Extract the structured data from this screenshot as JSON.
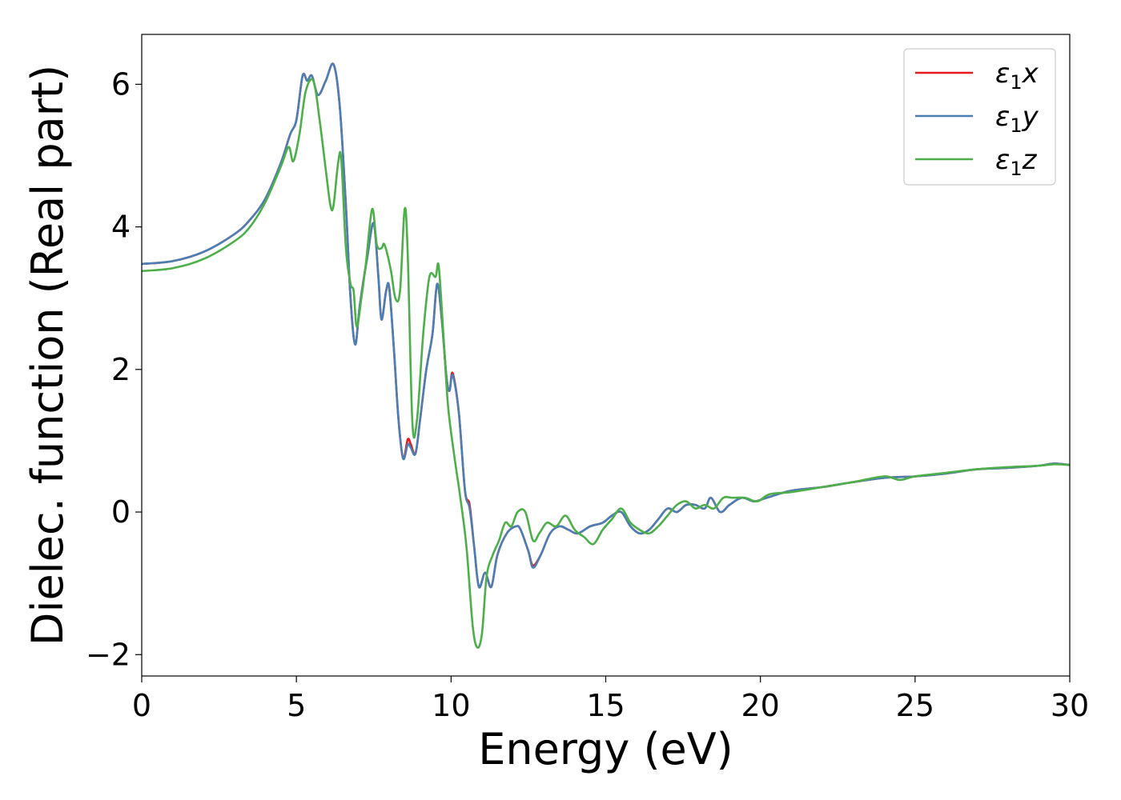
{
  "chart_data": {
    "type": "line",
    "title": "",
    "xlabel": "Energy (eV)",
    "ylabel": "Dielec. function (Real part)",
    "xlim": [
      0,
      30
    ],
    "ylim": [
      -2.3,
      6.7
    ],
    "xticks": [
      0,
      5,
      10,
      15,
      20,
      25,
      30
    ],
    "xtick_labels": [
      "0",
      "5",
      "10",
      "15",
      "20",
      "25",
      "30"
    ],
    "yticks": [
      -2,
      0,
      2,
      4,
      6
    ],
    "ytick_labels": [
      "−2",
      "0",
      "2",
      "4",
      "6"
    ],
    "grid": false,
    "legend_position": "top-right",
    "series": [
      {
        "name": "ε₁x",
        "legend_base": "ε",
        "legend_sub": "1",
        "legend_var": "x",
        "color": "#e41a1c",
        "points": [
          [
            0,
            3.48
          ],
          [
            1,
            3.52
          ],
          [
            2,
            3.65
          ],
          [
            3,
            3.9
          ],
          [
            3.5,
            4.1
          ],
          [
            4,
            4.4
          ],
          [
            4.5,
            4.9
          ],
          [
            4.8,
            5.3
          ],
          [
            5,
            5.5
          ],
          [
            5.2,
            6.12
          ],
          [
            5.35,
            6.05
          ],
          [
            5.5,
            6.12
          ],
          [
            5.7,
            5.85
          ],
          [
            5.95,
            6.05
          ],
          [
            6.2,
            6.28
          ],
          [
            6.4,
            5.7
          ],
          [
            6.6,
            4.3
          ],
          [
            6.75,
            3.0
          ],
          [
            6.9,
            2.35
          ],
          [
            7.05,
            2.9
          ],
          [
            7.3,
            3.6
          ],
          [
            7.5,
            4.05
          ],
          [
            7.65,
            3.3
          ],
          [
            7.75,
            2.7
          ],
          [
            7.9,
            3.1
          ],
          [
            8.0,
            3.15
          ],
          [
            8.15,
            2.3
          ],
          [
            8.3,
            1.3
          ],
          [
            8.45,
            0.75
          ],
          [
            8.6,
            1.02
          ],
          [
            8.7,
            0.95
          ],
          [
            8.85,
            0.82
          ],
          [
            9.0,
            1.3
          ],
          [
            9.2,
            2.0
          ],
          [
            9.4,
            2.5
          ],
          [
            9.55,
            3.2
          ],
          [
            9.7,
            2.7
          ],
          [
            9.85,
            1.9
          ],
          [
            9.95,
            1.7
          ],
          [
            10.05,
            1.95
          ],
          [
            10.25,
            1.4
          ],
          [
            10.45,
            0.3
          ],
          [
            10.6,
            0.1
          ],
          [
            10.75,
            -0.5
          ],
          [
            10.9,
            -1.05
          ],
          [
            11.1,
            -0.85
          ],
          [
            11.3,
            -1.05
          ],
          [
            11.5,
            -0.6
          ],
          [
            11.8,
            -0.3
          ],
          [
            12.1,
            -0.2
          ],
          [
            12.25,
            -0.25
          ],
          [
            12.5,
            -0.55
          ],
          [
            12.65,
            -0.75
          ],
          [
            12.9,
            -0.6
          ],
          [
            13.2,
            -0.3
          ],
          [
            13.5,
            -0.2
          ],
          [
            13.8,
            -0.25
          ],
          [
            14.1,
            -0.3
          ],
          [
            14.5,
            -0.2
          ],
          [
            14.9,
            -0.15
          ],
          [
            15.2,
            -0.05
          ],
          [
            15.5,
            0.0
          ],
          [
            15.8,
            -0.2
          ],
          [
            16.1,
            -0.3
          ],
          [
            16.4,
            -0.25
          ],
          [
            16.7,
            -0.1
          ],
          [
            17.0,
            0.05
          ],
          [
            17.3,
            0.0
          ],
          [
            17.6,
            0.1
          ],
          [
            17.9,
            0.1
          ],
          [
            18.2,
            0.05
          ],
          [
            18.4,
            0.2
          ],
          [
            18.7,
            0.0
          ],
          [
            19.0,
            0.1
          ],
          [
            19.4,
            0.2
          ],
          [
            19.8,
            0.15
          ],
          [
            20.2,
            0.2
          ],
          [
            21.0,
            0.3
          ],
          [
            22.0,
            0.35
          ],
          [
            23.0,
            0.42
          ],
          [
            24.0,
            0.48
          ],
          [
            25.0,
            0.5
          ],
          [
            26.0,
            0.54
          ],
          [
            27.0,
            0.6
          ],
          [
            28.0,
            0.62
          ],
          [
            29.0,
            0.65
          ],
          [
            29.5,
            0.68
          ],
          [
            30,
            0.66
          ]
        ]
      },
      {
        "name": "ε₁y",
        "legend_base": "ε",
        "legend_sub": "1",
        "legend_var": "y",
        "color": "#4a7fb5",
        "points": [
          [
            0,
            3.48
          ],
          [
            1,
            3.52
          ],
          [
            2,
            3.65
          ],
          [
            3,
            3.9
          ],
          [
            3.5,
            4.1
          ],
          [
            4,
            4.4
          ],
          [
            4.5,
            4.9
          ],
          [
            4.8,
            5.3
          ],
          [
            5,
            5.5
          ],
          [
            5.2,
            6.12
          ],
          [
            5.35,
            6.05
          ],
          [
            5.5,
            6.12
          ],
          [
            5.7,
            5.85
          ],
          [
            5.95,
            6.05
          ],
          [
            6.2,
            6.28
          ],
          [
            6.4,
            5.7
          ],
          [
            6.6,
            4.3
          ],
          [
            6.75,
            3.0
          ],
          [
            6.9,
            2.35
          ],
          [
            7.05,
            2.9
          ],
          [
            7.3,
            3.6
          ],
          [
            7.5,
            4.05
          ],
          [
            7.65,
            3.3
          ],
          [
            7.75,
            2.7
          ],
          [
            7.9,
            3.1
          ],
          [
            8.0,
            3.15
          ],
          [
            8.15,
            2.3
          ],
          [
            8.3,
            1.3
          ],
          [
            8.45,
            0.75
          ],
          [
            8.6,
            0.95
          ],
          [
            8.7,
            0.9
          ],
          [
            8.85,
            0.82
          ],
          [
            9.0,
            1.3
          ],
          [
            9.2,
            2.0
          ],
          [
            9.4,
            2.5
          ],
          [
            9.55,
            3.2
          ],
          [
            9.7,
            2.7
          ],
          [
            9.85,
            1.9
          ],
          [
            9.95,
            1.7
          ],
          [
            10.05,
            1.92
          ],
          [
            10.25,
            1.4
          ],
          [
            10.45,
            0.3
          ],
          [
            10.6,
            0.05
          ],
          [
            10.75,
            -0.5
          ],
          [
            10.9,
            -1.05
          ],
          [
            11.1,
            -0.85
          ],
          [
            11.3,
            -1.05
          ],
          [
            11.5,
            -0.6
          ],
          [
            11.8,
            -0.3
          ],
          [
            12.1,
            -0.2
          ],
          [
            12.25,
            -0.25
          ],
          [
            12.5,
            -0.55
          ],
          [
            12.65,
            -0.78
          ],
          [
            12.9,
            -0.6
          ],
          [
            13.2,
            -0.3
          ],
          [
            13.5,
            -0.2
          ],
          [
            13.8,
            -0.25
          ],
          [
            14.1,
            -0.3
          ],
          [
            14.5,
            -0.2
          ],
          [
            14.9,
            -0.15
          ],
          [
            15.2,
            -0.05
          ],
          [
            15.5,
            0.0
          ],
          [
            15.8,
            -0.2
          ],
          [
            16.1,
            -0.3
          ],
          [
            16.4,
            -0.25
          ],
          [
            16.7,
            -0.1
          ],
          [
            17.0,
            0.05
          ],
          [
            17.3,
            0.0
          ],
          [
            17.6,
            0.1
          ],
          [
            17.9,
            0.1
          ],
          [
            18.2,
            0.05
          ],
          [
            18.4,
            0.2
          ],
          [
            18.7,
            0.0
          ],
          [
            19.0,
            0.1
          ],
          [
            19.4,
            0.2
          ],
          [
            19.8,
            0.15
          ],
          [
            20.2,
            0.2
          ],
          [
            21.0,
            0.3
          ],
          [
            22.0,
            0.35
          ],
          [
            23.0,
            0.42
          ],
          [
            24.0,
            0.48
          ],
          [
            25.0,
            0.5
          ],
          [
            26.0,
            0.54
          ],
          [
            27.0,
            0.6
          ],
          [
            28.0,
            0.62
          ],
          [
            29.0,
            0.65
          ],
          [
            29.5,
            0.68
          ],
          [
            30,
            0.66
          ]
        ]
      },
      {
        "name": "ε₁z",
        "legend_base": "ε",
        "legend_sub": "1",
        "legend_var": "z",
        "color": "#4daf4a",
        "points": [
          [
            0,
            3.38
          ],
          [
            1,
            3.42
          ],
          [
            2,
            3.55
          ],
          [
            3,
            3.8
          ],
          [
            3.5,
            4.0
          ],
          [
            4,
            4.35
          ],
          [
            4.5,
            4.85
          ],
          [
            4.75,
            5.12
          ],
          [
            4.9,
            4.92
          ],
          [
            5.1,
            5.3
          ],
          [
            5.3,
            5.9
          ],
          [
            5.55,
            6.05
          ],
          [
            5.75,
            5.5
          ],
          [
            5.95,
            4.8
          ],
          [
            6.1,
            4.3
          ],
          [
            6.2,
            4.3
          ],
          [
            6.35,
            4.9
          ],
          [
            6.45,
            4.95
          ],
          [
            6.6,
            3.7
          ],
          [
            6.75,
            3.2
          ],
          [
            6.85,
            3.1
          ],
          [
            6.95,
            2.6
          ],
          [
            7.1,
            3.0
          ],
          [
            7.25,
            3.5
          ],
          [
            7.45,
            4.25
          ],
          [
            7.6,
            3.75
          ],
          [
            7.75,
            3.7
          ],
          [
            7.85,
            3.75
          ],
          [
            8.05,
            3.4
          ],
          [
            8.2,
            3.0
          ],
          [
            8.35,
            3.1
          ],
          [
            8.5,
            4.25
          ],
          [
            8.6,
            3.6
          ],
          [
            8.75,
            1.25
          ],
          [
            8.9,
            1.3
          ],
          [
            9.1,
            2.5
          ],
          [
            9.3,
            3.3
          ],
          [
            9.5,
            3.3
          ],
          [
            9.6,
            3.45
          ],
          [
            9.75,
            2.5
          ],
          [
            9.9,
            1.5
          ],
          [
            10.1,
            0.8
          ],
          [
            10.3,
            0.2
          ],
          [
            10.5,
            -0.5
          ],
          [
            10.7,
            -1.6
          ],
          [
            10.85,
            -1.9
          ],
          [
            11.0,
            -1.7
          ],
          [
            11.15,
            -0.9
          ],
          [
            11.35,
            -0.6
          ],
          [
            11.55,
            -0.4
          ],
          [
            11.75,
            -0.15
          ],
          [
            11.95,
            -0.2
          ],
          [
            12.15,
            0.0
          ],
          [
            12.4,
            0.0
          ],
          [
            12.65,
            -0.4
          ],
          [
            12.85,
            -0.3
          ],
          [
            13.1,
            -0.15
          ],
          [
            13.4,
            -0.2
          ],
          [
            13.7,
            -0.05
          ],
          [
            14.0,
            -0.25
          ],
          [
            14.3,
            -0.35
          ],
          [
            14.6,
            -0.45
          ],
          [
            14.9,
            -0.25
          ],
          [
            15.2,
            -0.1
          ],
          [
            15.5,
            0.05
          ],
          [
            15.8,
            -0.15
          ],
          [
            16.1,
            -0.25
          ],
          [
            16.4,
            -0.3
          ],
          [
            16.7,
            -0.2
          ],
          [
            17.0,
            -0.05
          ],
          [
            17.3,
            0.1
          ],
          [
            17.6,
            0.15
          ],
          [
            17.9,
            0.05
          ],
          [
            18.2,
            0.1
          ],
          [
            18.5,
            0.05
          ],
          [
            18.8,
            0.2
          ],
          [
            19.1,
            0.2
          ],
          [
            19.5,
            0.2
          ],
          [
            19.9,
            0.15
          ],
          [
            20.3,
            0.25
          ],
          [
            21.0,
            0.28
          ],
          [
            22.0,
            0.35
          ],
          [
            23.0,
            0.42
          ],
          [
            24.0,
            0.5
          ],
          [
            24.5,
            0.45
          ],
          [
            25.0,
            0.5
          ],
          [
            26.0,
            0.55
          ],
          [
            27.0,
            0.6
          ],
          [
            28.0,
            0.63
          ],
          [
            29.0,
            0.65
          ],
          [
            29.5,
            0.67
          ],
          [
            30,
            0.66
          ]
        ]
      }
    ]
  }
}
